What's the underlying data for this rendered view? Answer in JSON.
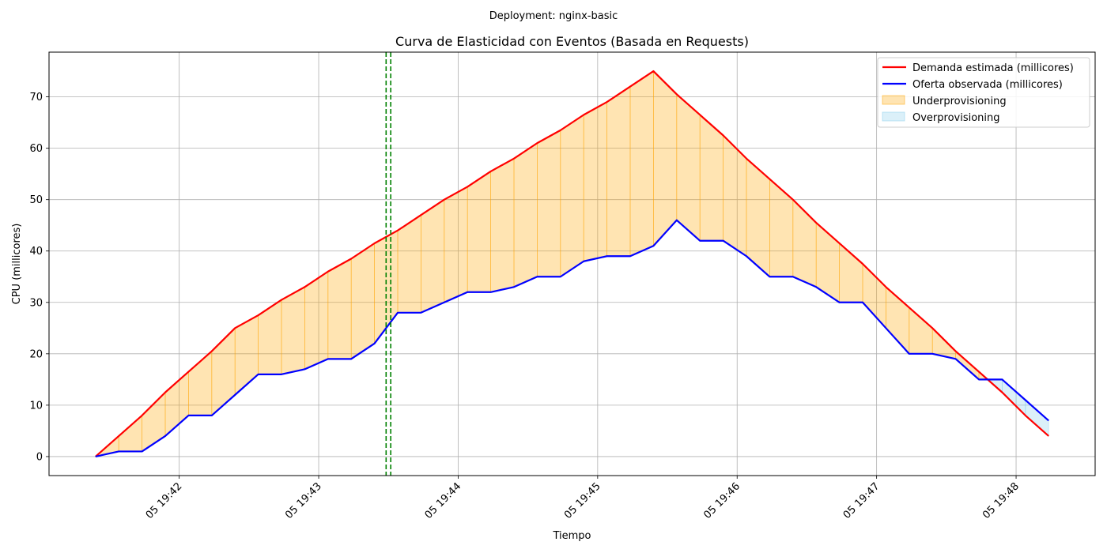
{
  "suptitle": "Deployment: nginx-basic",
  "chart_data": {
    "type": "line",
    "title": "Curva de Elasticidad con Eventos (Basada en Requests)",
    "xlabel": "Tiempo",
    "ylabel": "CPU (millicores)",
    "xlim": [
      "19:41:04",
      "19:48:34"
    ],
    "ylim": [
      -3.7,
      78.7
    ],
    "x_tick_labels": [
      "05 19:42",
      "05 19:43",
      "05 19:44",
      "05 19:45",
      "05 19:46",
      "05 19:47",
      "05 19:48"
    ],
    "x_tick_times": [
      "19:42:00",
      "19:43:00",
      "19:44:00",
      "19:45:00",
      "19:46:00",
      "19:47:00",
      "19:48:00"
    ],
    "y_ticks": [
      0,
      10,
      20,
      30,
      40,
      50,
      60,
      70
    ],
    "grid": true,
    "legend_position": "top-right",
    "x": [
      "19:41:24",
      "19:41:34",
      "19:41:44",
      "19:41:54",
      "19:42:04",
      "19:42:14",
      "19:42:24",
      "19:42:34",
      "19:42:44",
      "19:42:54",
      "19:43:04",
      "19:43:14",
      "19:43:24",
      "19:43:34",
      "19:43:44",
      "19:43:54",
      "19:44:04",
      "19:44:14",
      "19:44:24",
      "19:44:34",
      "19:44:44",
      "19:44:54",
      "19:45:04",
      "19:45:14",
      "19:45:24",
      "19:45:34",
      "19:45:44",
      "19:45:54",
      "19:46:04",
      "19:46:14",
      "19:46:24",
      "19:46:34",
      "19:46:44",
      "19:46:54",
      "19:47:04",
      "19:47:14",
      "19:47:24",
      "19:47:34",
      "19:47:44",
      "19:47:54",
      "19:48:04",
      "19:48:14"
    ],
    "series": [
      {
        "name": "Demanda estimada (millicores)",
        "color": "#ff0000",
        "values": [
          0,
          4,
          8,
          12.5,
          16.5,
          20.5,
          25,
          27.5,
          30.5,
          33,
          36,
          38.5,
          41.5,
          44,
          47,
          50,
          52.5,
          55.5,
          58,
          61,
          63.5,
          66.5,
          69,
          72,
          75,
          70.5,
          66.5,
          62.5,
          58,
          54,
          50,
          45.5,
          41.5,
          37.5,
          33,
          29,
          25,
          20.5,
          16.5,
          12.5,
          8,
          4
        ]
      },
      {
        "name": "Oferta observada (millicores)",
        "color": "#0000ff",
        "values": [
          0,
          1,
          1,
          4,
          8,
          8,
          12,
          16,
          16,
          17,
          19,
          19,
          22,
          28,
          28,
          30,
          32,
          32,
          33,
          35,
          35,
          38,
          39,
          39,
          41,
          46,
          42,
          42,
          39,
          35,
          35,
          33,
          30,
          30,
          25,
          20,
          20,
          19,
          15,
          15,
          11,
          7
        ]
      }
    ],
    "fills": [
      {
        "name": "Underprovisioning",
        "color": "#ffa500"
      },
      {
        "name": "Overprovisioning",
        "color": "#87ceeb"
      }
    ],
    "events": [
      {
        "time": "19:43:29",
        "color": "#008000"
      },
      {
        "time": "19:43:31",
        "color": "#008000"
      }
    ]
  }
}
